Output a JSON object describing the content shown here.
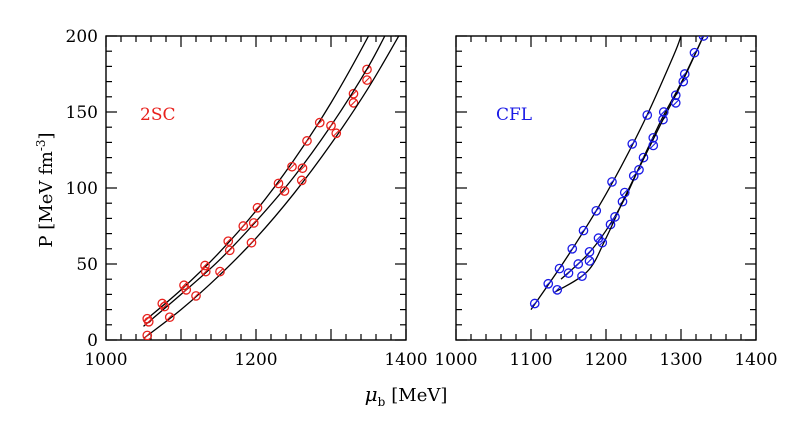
{
  "chart_data": [
    {
      "type": "scatter",
      "panel_label": "2SC",
      "label_color": "#e8211d",
      "marker_color": "#e8211d",
      "line_color": "#000000",
      "xlabel_symbol": "μ",
      "xlabel_subscript": "b",
      "xlabel_unit": "[MeV]",
      "ylabel_main": "P [MeV fm",
      "ylabel_sup": "-3",
      "ylabel_close": "]",
      "xlim": [
        1000,
        1400
      ],
      "ylim": [
        0,
        200
      ],
      "x_ticks": [
        "1000",
        "1200",
        "1400"
      ],
      "y_ticks": [
        "0",
        "50",
        "100",
        "150",
        "200"
      ],
      "series": [
        {
          "points": [
            [
              1055,
              14
            ],
            [
              1075,
              24
            ],
            [
              1104,
              36
            ],
            [
              1132,
              49
            ],
            [
              1163,
              65
            ],
            [
              1183,
              75
            ],
            [
              1202,
              87
            ],
            [
              1230,
              103
            ],
            [
              1248,
              114
            ],
            [
              1268,
              131
            ],
            [
              1285,
              143
            ],
            [
              1330,
              162
            ],
            [
              1348,
              178
            ]
          ],
          "curve": [
            [
              1050,
              12
            ],
            [
              1100,
              33
            ],
            [
              1150,
              57
            ],
            [
              1200,
              85
            ],
            [
              1250,
              118
            ],
            [
              1300,
              156
            ],
            [
              1350,
              200
            ],
            [
              1368,
              219
            ]
          ]
        },
        {
          "points": [
            [
              1057,
              12
            ],
            [
              1078,
              22
            ],
            [
              1107,
              33
            ],
            [
              1133,
              45
            ],
            [
              1165,
              59
            ],
            [
              1197,
              77
            ],
            [
              1238,
              98
            ],
            [
              1262,
              113
            ],
            [
              1300,
              141
            ],
            [
              1330,
              156
            ],
            [
              1348,
              171
            ]
          ],
          "curve": [
            [
              1050,
              9
            ],
            [
              1100,
              30
            ],
            [
              1150,
              52
            ],
            [
              1200,
              78
            ],
            [
              1250,
              107
            ],
            [
              1300,
              141
            ],
            [
              1350,
              180
            ],
            [
              1384,
              212
            ]
          ]
        },
        {
          "points": [
            [
              1055,
              3
            ],
            [
              1085,
              15
            ],
            [
              1120,
              29
            ],
            [
              1152,
              45
            ],
            [
              1194,
              64
            ],
            [
              1261,
              105
            ],
            [
              1307,
              136
            ]
          ],
          "curve": [
            [
              1050,
              1
            ],
            [
              1100,
              20
            ],
            [
              1150,
              42
            ],
            [
              1200,
              67
            ],
            [
              1250,
              96
            ],
            [
              1300,
              129
            ],
            [
              1350,
              166
            ],
            [
              1395,
              204
            ]
          ]
        }
      ]
    },
    {
      "type": "scatter",
      "panel_label": "CFL",
      "label_color": "#1a1ae6",
      "marker_color": "#1a1ae6",
      "line_color": "#000000",
      "xlim": [
        1000,
        1400
      ],
      "ylim": [
        0,
        200
      ],
      "x_ticks": [
        "1000",
        "1100",
        "1200",
        "1300",
        "1400"
      ],
      "series": [
        {
          "points": [
            [
              1105,
              24
            ],
            [
              1123,
              37
            ],
            [
              1138,
              47
            ],
            [
              1155,
              60
            ],
            [
              1170,
              72
            ],
            [
              1187,
              85
            ],
            [
              1208,
              104
            ],
            [
              1235,
              129
            ],
            [
              1255,
              148
            ]
          ],
          "curve": [
            [
              1100,
              20
            ],
            [
              1150,
              56
            ],
            [
              1200,
              96
            ],
            [
              1250,
              143
            ],
            [
              1290,
              187
            ],
            [
              1300,
              200
            ]
          ]
        },
        {
          "points": [
            [
              1150,
              44
            ],
            [
              1163,
              50
            ],
            [
              1178,
              58
            ],
            [
              1190,
              67
            ],
            [
              1206,
              76
            ],
            [
              1222,
              91
            ],
            [
              1237,
              108
            ],
            [
              1250,
              120
            ],
            [
              1263,
              133
            ],
            [
              1276,
              145
            ],
            [
              1293,
              161
            ],
            [
              1305,
              175
            ]
          ],
          "curve": [
            [
              1140,
              40
            ],
            [
              1175,
              56
            ],
            [
              1200,
              72
            ],
            [
              1225,
              93
            ],
            [
              1250,
              120
            ],
            [
              1275,
              146
            ],
            [
              1300,
              169
            ],
            [
              1330,
              200
            ]
          ]
        },
        {
          "points": [
            [
              1135,
              33
            ],
            [
              1168,
              42
            ],
            [
              1178,
              52
            ],
            [
              1195,
              64
            ],
            [
              1212,
              81
            ],
            [
              1225,
              97
            ],
            [
              1244,
              112
            ],
            [
              1263,
              128
            ],
            [
              1277,
              150
            ],
            [
              1293,
              156
            ],
            [
              1303,
              170
            ],
            [
              1318,
              189
            ],
            [
              1330,
              200
            ]
          ],
          "curve": [
            [
              1130,
              31
            ],
            [
              1175,
              45
            ],
            [
              1200,
              67
            ],
            [
              1225,
              94
            ],
            [
              1250,
              119
            ],
            [
              1275,
              144
            ],
            [
              1300,
              168
            ],
            [
              1330,
              200
            ]
          ]
        }
      ]
    }
  ]
}
